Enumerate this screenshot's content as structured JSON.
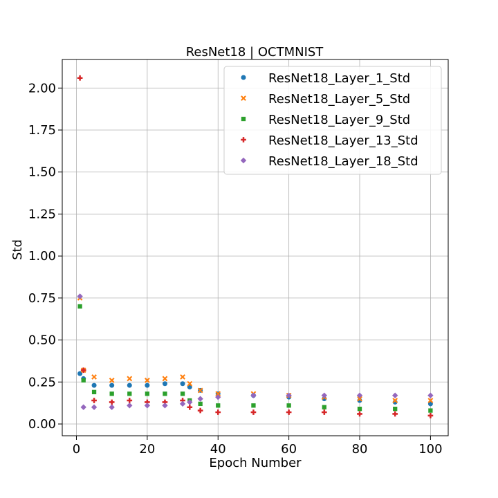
{
  "chart_data": {
    "type": "scatter",
    "title": "ResNet18 | OCTMNIST",
    "xlabel": "Epoch Number",
    "ylabel": "Std",
    "xlim": [
      -4,
      105
    ],
    "ylim": [
      -0.07,
      2.17
    ],
    "xticks": [
      0,
      20,
      40,
      60,
      80,
      100
    ],
    "yticks": [
      0.0,
      0.25,
      0.5,
      0.75,
      1.0,
      1.25,
      1.5,
      1.75,
      2.0
    ],
    "xtick_labels": [
      "0",
      "20",
      "40",
      "60",
      "80",
      "100"
    ],
    "ytick_labels": [
      "0.00",
      "0.25",
      "0.50",
      "0.75",
      "1.00",
      "1.25",
      "1.50",
      "1.75",
      "2.00"
    ],
    "grid": true,
    "legend_position": "top-right",
    "colors": {
      "blue": "#1f77b4",
      "orange": "#ff7f0e",
      "green": "#2ca02c",
      "red": "#d62728",
      "purple": "#9467bd"
    },
    "series": [
      {
        "name": "ResNet18_Layer_1_Std",
        "marker": "circle",
        "color": "#1f77b4",
        "epochs": [
          1,
          2,
          5,
          10,
          15,
          20,
          25,
          30,
          32,
          35,
          40,
          50,
          60,
          70,
          80,
          90,
          100
        ],
        "values": [
          0.3,
          0.27,
          0.23,
          0.23,
          0.23,
          0.23,
          0.24,
          0.24,
          0.22,
          0.2,
          0.18,
          0.17,
          0.16,
          0.15,
          0.14,
          0.13,
          0.12
        ]
      },
      {
        "name": "ResNet18_Layer_5_Std",
        "marker": "x",
        "color": "#ff7f0e",
        "epochs": [
          1,
          2,
          5,
          10,
          15,
          20,
          25,
          30,
          32,
          35,
          40,
          50,
          60,
          70,
          80,
          90,
          100
        ],
        "values": [
          0.75,
          0.32,
          0.28,
          0.26,
          0.27,
          0.26,
          0.27,
          0.28,
          0.24,
          0.2,
          0.18,
          0.18,
          0.17,
          0.16,
          0.15,
          0.14,
          0.14
        ]
      },
      {
        "name": "ResNet18_Layer_9_Std",
        "marker": "square",
        "color": "#2ca02c",
        "epochs": [
          1,
          2,
          5,
          10,
          15,
          20,
          25,
          30,
          32,
          35,
          40,
          50,
          60,
          70,
          80,
          90,
          100
        ],
        "values": [
          0.7,
          0.26,
          0.19,
          0.18,
          0.18,
          0.18,
          0.18,
          0.18,
          0.14,
          0.12,
          0.11,
          0.11,
          0.11,
          0.1,
          0.09,
          0.09,
          0.08
        ]
      },
      {
        "name": "ResNet18_Layer_13_Std",
        "marker": "plus",
        "color": "#d62728",
        "epochs": [
          1,
          2,
          5,
          10,
          15,
          20,
          25,
          30,
          32,
          35,
          40,
          50,
          60,
          70,
          80,
          90,
          100
        ],
        "values": [
          2.06,
          0.32,
          0.14,
          0.13,
          0.14,
          0.13,
          0.13,
          0.14,
          0.1,
          0.08,
          0.07,
          0.07,
          0.07,
          0.07,
          0.06,
          0.06,
          0.05
        ]
      },
      {
        "name": "ResNet18_Layer_18_Std",
        "marker": "diamond",
        "color": "#9467bd",
        "epochs": [
          1,
          2,
          5,
          10,
          15,
          20,
          25,
          30,
          32,
          35,
          40,
          50,
          60,
          70,
          80,
          90,
          100
        ],
        "values": [
          0.76,
          0.1,
          0.1,
          0.1,
          0.11,
          0.11,
          0.11,
          0.12,
          0.13,
          0.15,
          0.16,
          0.17,
          0.17,
          0.17,
          0.17,
          0.17,
          0.17
        ]
      }
    ]
  }
}
